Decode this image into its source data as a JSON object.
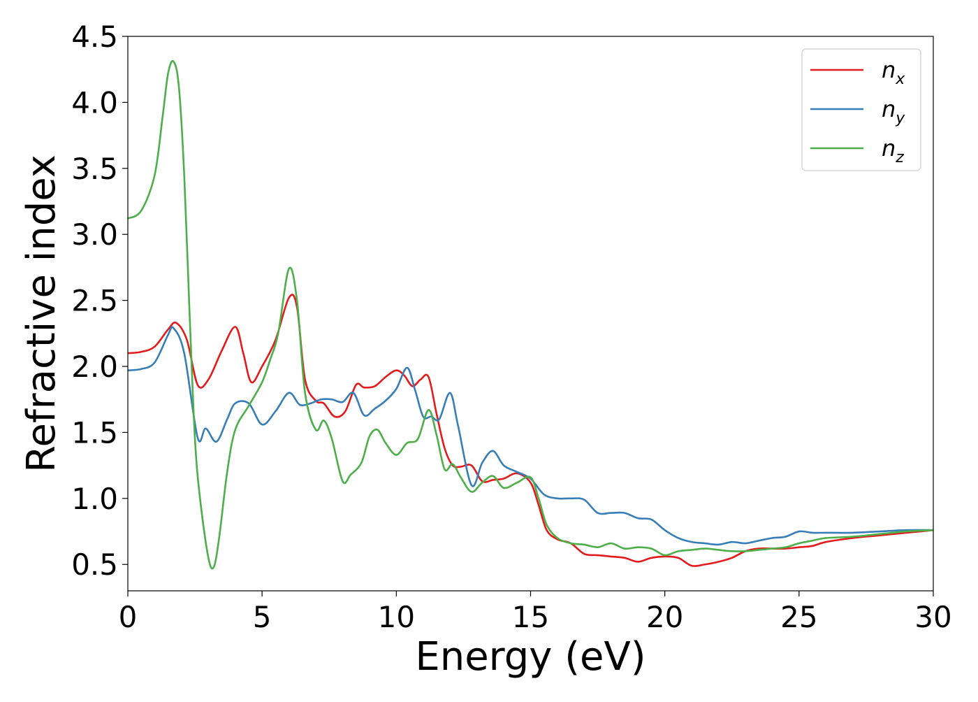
{
  "chart_data": {
    "type": "line",
    "xlabel": "Energy (eV)",
    "ylabel": "Refractive index",
    "xlim": [
      0,
      30
    ],
    "ylim": [
      0.3,
      4.5
    ],
    "x_ticks": [
      0,
      5,
      10,
      15,
      20,
      25,
      30
    ],
    "y_ticks": [
      0.5,
      1.0,
      1.5,
      2.0,
      2.5,
      3.0,
      3.5,
      4.0,
      4.5
    ],
    "x_tick_labels": [
      "0",
      "5",
      "10",
      "15",
      "20",
      "25",
      "30"
    ],
    "y_tick_labels": [
      "0.5",
      "1.0",
      "1.5",
      "2.0",
      "2.5",
      "3.0",
      "3.5",
      "4.0",
      "4.5"
    ],
    "grid": false,
    "legend_position": "top-right",
    "series": [
      {
        "name": "n_x",
        "label_base": "n",
        "label_sub": "x",
        "color": "#e41a1c",
        "x": [
          0,
          0.5,
          1.0,
          1.5,
          1.8,
          2.2,
          2.6,
          3.0,
          3.5,
          4.0,
          4.3,
          4.6,
          5.0,
          5.5,
          6.0,
          6.3,
          6.6,
          7.0,
          7.3,
          7.7,
          8.1,
          8.5,
          8.8,
          9.2,
          9.6,
          10.0,
          10.3,
          10.6,
          10.9,
          11.2,
          11.5,
          11.8,
          12.1,
          12.4,
          12.8,
          13.2,
          13.6,
          14.0,
          14.5,
          15.0,
          15.3,
          15.6,
          16.0,
          16.5,
          17.0,
          17.5,
          18.0,
          18.5,
          19.0,
          19.5,
          20.0,
          20.5,
          21.0,
          21.5,
          22.0,
          22.5,
          23.0,
          23.5,
          24.0,
          24.5,
          25.0,
          25.5,
          26.0,
          27.0,
          28.0,
          29.0,
          30.0
        ],
        "y": [
          2.1,
          2.11,
          2.15,
          2.28,
          2.33,
          2.2,
          1.86,
          1.9,
          2.12,
          2.3,
          2.1,
          1.88,
          2.0,
          2.2,
          2.52,
          2.45,
          1.9,
          1.74,
          1.72,
          1.62,
          1.66,
          1.86,
          1.84,
          1.85,
          1.92,
          1.97,
          1.93,
          1.85,
          1.9,
          1.92,
          1.64,
          1.38,
          1.25,
          1.24,
          1.25,
          1.13,
          1.14,
          1.15,
          1.19,
          1.12,
          0.95,
          0.76,
          0.69,
          0.66,
          0.58,
          0.57,
          0.56,
          0.55,
          0.52,
          0.55,
          0.56,
          0.55,
          0.49,
          0.5,
          0.52,
          0.55,
          0.6,
          0.62,
          0.62,
          0.62,
          0.63,
          0.64,
          0.67,
          0.7,
          0.72,
          0.74,
          0.76
        ]
      },
      {
        "name": "n_y",
        "label_base": "n",
        "label_sub": "y",
        "color": "#377eb8",
        "x": [
          0,
          0.5,
          1.0,
          1.5,
          1.7,
          2.1,
          2.6,
          2.9,
          3.3,
          3.7,
          4.0,
          4.5,
          5.0,
          5.5,
          6.0,
          6.4,
          6.8,
          7.2,
          7.6,
          8.0,
          8.4,
          8.8,
          9.2,
          9.6,
          10.0,
          10.4,
          10.7,
          11.0,
          11.3,
          11.6,
          12.0,
          12.3,
          12.8,
          13.2,
          13.6,
          14.0,
          14.5,
          15.0,
          15.5,
          16.0,
          16.5,
          17.0,
          17.5,
          18.0,
          18.5,
          19.0,
          19.5,
          20.0,
          20.5,
          21.0,
          21.5,
          22.0,
          22.5,
          23.0,
          23.5,
          24.0,
          24.5,
          25.0,
          25.5,
          26.0,
          27.0,
          28.0,
          29.0,
          30.0
        ],
        "y": [
          1.97,
          1.98,
          2.03,
          2.24,
          2.29,
          2.1,
          1.46,
          1.53,
          1.43,
          1.6,
          1.72,
          1.72,
          1.56,
          1.66,
          1.8,
          1.71,
          1.72,
          1.75,
          1.75,
          1.73,
          1.8,
          1.63,
          1.68,
          1.74,
          1.83,
          1.99,
          1.82,
          1.62,
          1.62,
          1.6,
          1.8,
          1.55,
          1.1,
          1.27,
          1.36,
          1.25,
          1.2,
          1.15,
          1.03,
          1.0,
          1.0,
          0.99,
          0.89,
          0.89,
          0.89,
          0.85,
          0.84,
          0.76,
          0.7,
          0.67,
          0.66,
          0.65,
          0.67,
          0.66,
          0.68,
          0.7,
          0.71,
          0.75,
          0.74,
          0.74,
          0.74,
          0.75,
          0.76,
          0.76
        ]
      },
      {
        "name": "n_z",
        "label_base": "n",
        "label_sub": "z",
        "color": "#4daf4a",
        "x": [
          0,
          0.5,
          1.0,
          1.3,
          1.5,
          1.7,
          1.9,
          2.1,
          2.3,
          2.5,
          2.7,
          3.0,
          3.2,
          3.4,
          3.7,
          4.0,
          4.5,
          5.0,
          5.3,
          5.6,
          6.0,
          6.3,
          6.6,
          7.0,
          7.3,
          7.6,
          8.0,
          8.3,
          8.7,
          9.0,
          9.3,
          9.6,
          10.0,
          10.4,
          10.8,
          11.2,
          11.5,
          11.8,
          12.1,
          12.4,
          12.8,
          13.2,
          13.6,
          14.0,
          14.5,
          15.0,
          15.3,
          15.6,
          16.0,
          16.5,
          17.0,
          17.5,
          18.0,
          18.5,
          19.0,
          19.5,
          20.0,
          20.5,
          21.0,
          21.5,
          22.0,
          22.5,
          23.0,
          23.5,
          24.0,
          24.5,
          25.0,
          25.5,
          26.0,
          27.0,
          28.0,
          29.0,
          30.0
        ],
        "y": [
          3.12,
          3.18,
          3.45,
          3.9,
          4.22,
          4.31,
          4.12,
          3.45,
          2.4,
          1.45,
          0.98,
          0.55,
          0.48,
          0.7,
          1.2,
          1.52,
          1.7,
          1.88,
          2.05,
          2.25,
          2.74,
          2.5,
          1.8,
          1.52,
          1.59,
          1.45,
          1.13,
          1.18,
          1.27,
          1.47,
          1.52,
          1.42,
          1.33,
          1.42,
          1.45,
          1.67,
          1.48,
          1.22,
          1.26,
          1.16,
          1.05,
          1.12,
          1.17,
          1.08,
          1.12,
          1.16,
          1.0,
          0.8,
          0.7,
          0.66,
          0.65,
          0.63,
          0.66,
          0.62,
          0.63,
          0.62,
          0.57,
          0.6,
          0.61,
          0.62,
          0.61,
          0.6,
          0.6,
          0.61,
          0.62,
          0.63,
          0.66,
          0.68,
          0.7,
          0.71,
          0.73,
          0.75,
          0.76
        ]
      }
    ]
  }
}
